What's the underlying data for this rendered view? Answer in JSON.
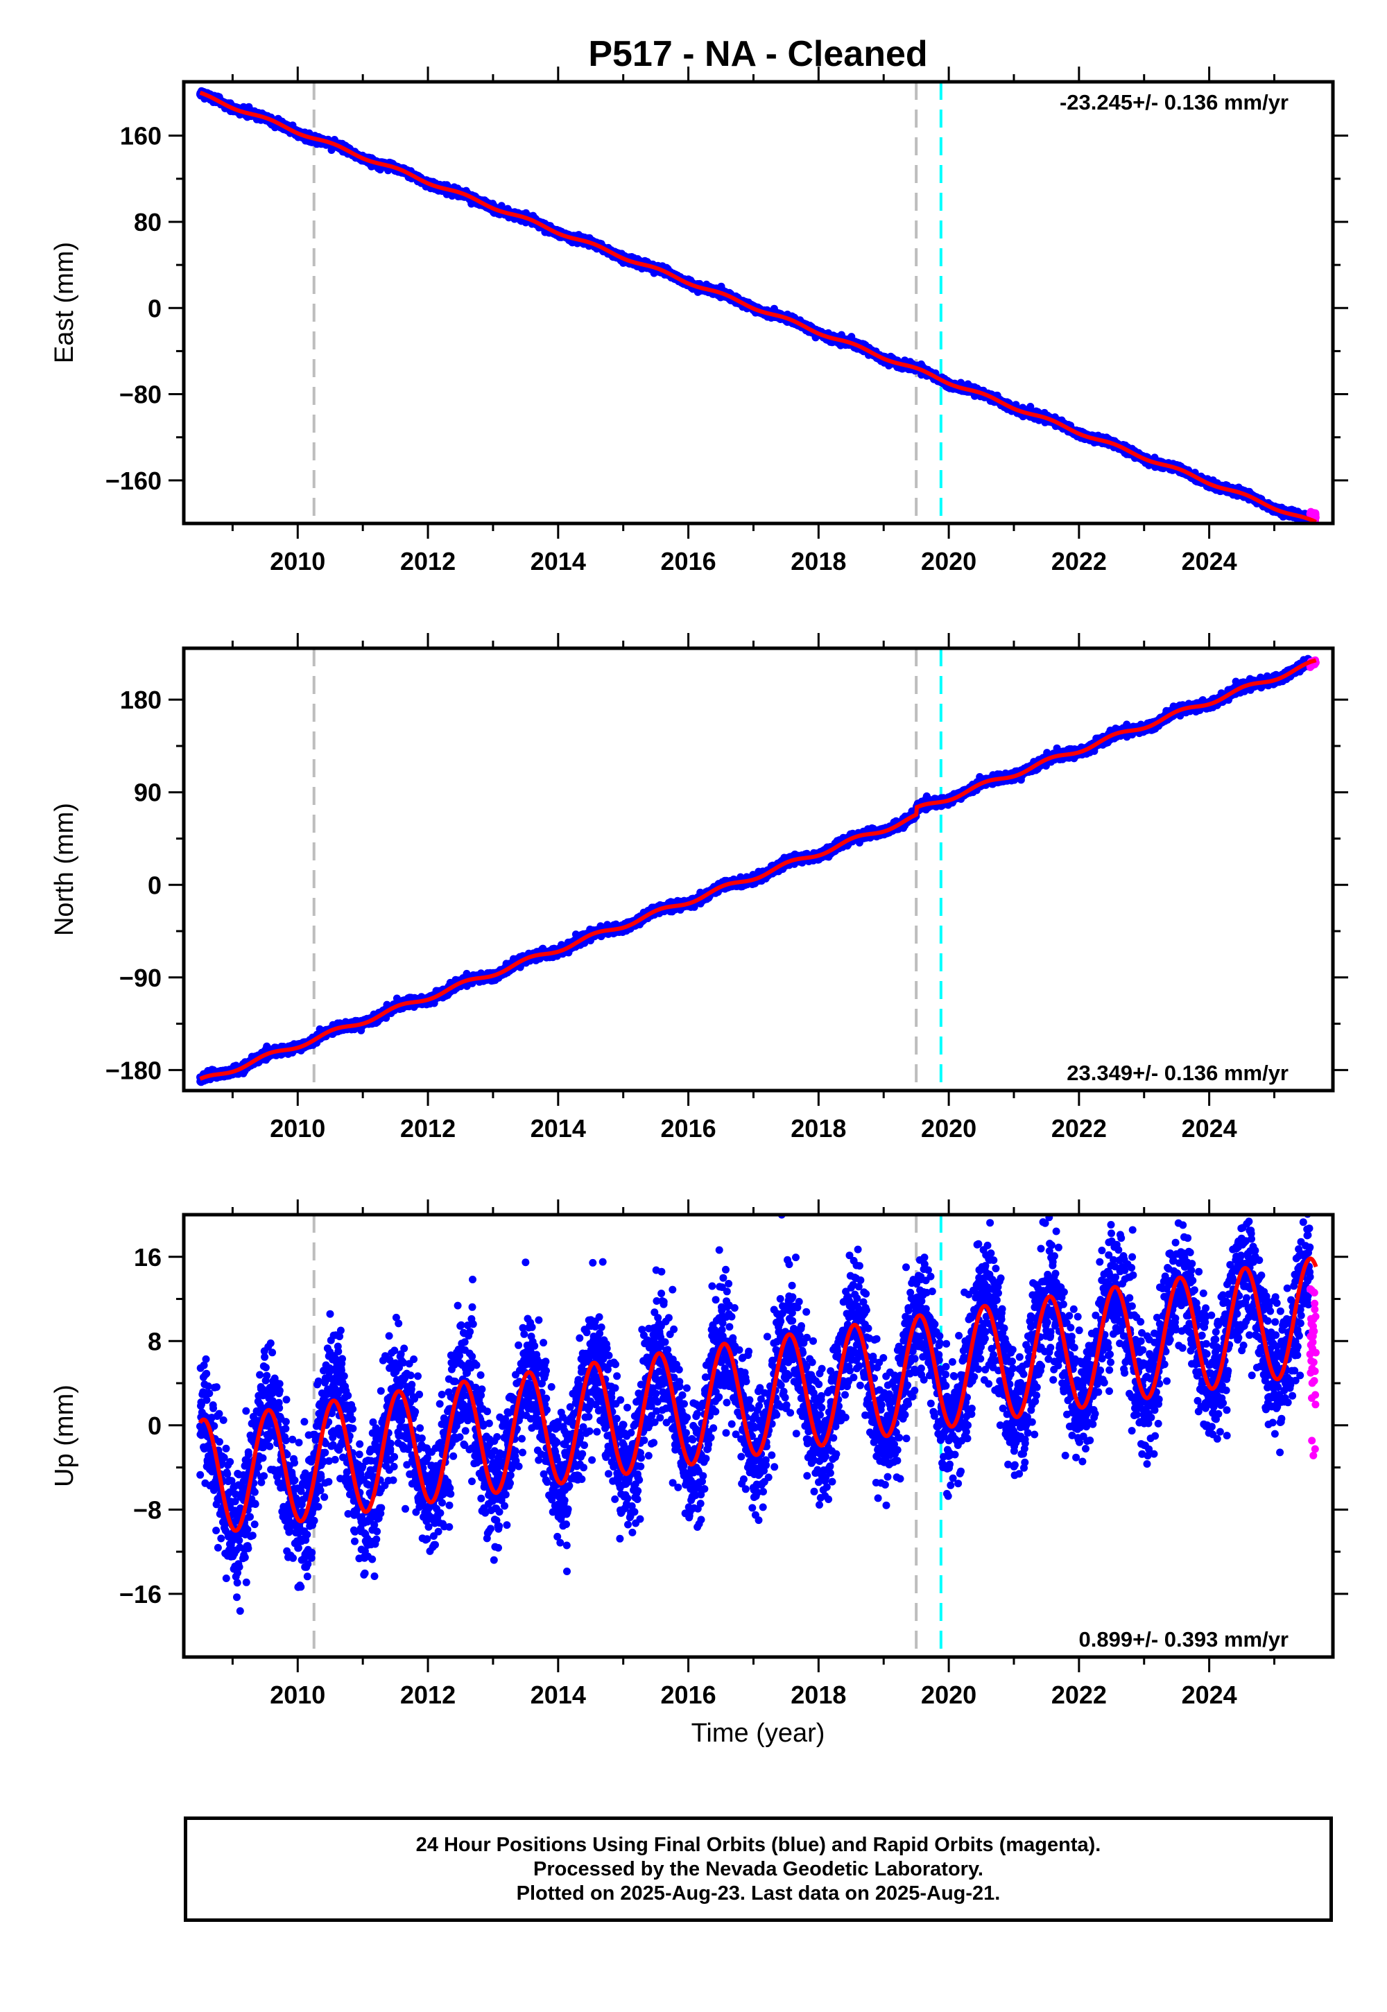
{
  "title": "P517  - NA - Cleaned",
  "xlabel": "Time (year)",
  "caption": {
    "line1": "24 Hour Positions Using Final Orbits (blue) and Rapid Orbits (magenta).",
    "line2": "Processed by the Nevada Geodetic Laboratory.",
    "line3": "Plotted on 2025-Aug-23. Last data on 2025-Aug-21."
  },
  "colors": {
    "final_orbits": "#0000ff",
    "rapid_orbits": "#ff00ff",
    "model_fit": "#ff0000",
    "event_line_gray": "#bdbdbd",
    "event_line_cyan": "#00ffff"
  },
  "chart_data": [
    {
      "type": "scatter",
      "ylabel": "East (mm)",
      "rate_label": "-23.245+/- 0.136 mm/yr",
      "rate_position": "top-right",
      "xlim": [
        2008.25,
        2025.9
      ],
      "ylim": [
        -200,
        210
      ],
      "xticks": [
        2010,
        2012,
        2014,
        2016,
        2018,
        2020,
        2022,
        2024
      ],
      "yticks": [
        160,
        80,
        0,
        -80,
        -160
      ],
      "ytick_labels": [
        "160",
        "80",
        "0",
        "−80",
        "−160"
      ],
      "vlines_gray": [
        2010.25,
        2019.5
      ],
      "vlines_cyan": [
        2019.88
      ],
      "series": [
        {
          "role": "final_orbits",
          "x_start": 2008.5,
          "x_end": 2025.55,
          "y_at_start": 198.5,
          "rate_mm_per_yr": -23.245,
          "seasonal_amplitude_mm": 1.5,
          "scatter_mm": 1.6
        },
        {
          "role": "rapid_orbits",
          "x_start": 2025.55,
          "x_end": 2025.64,
          "y_at_start": -191,
          "rate_mm_per_yr": -23.245,
          "scatter_mm": 1.2
        },
        {
          "role": "model_fit",
          "x_start": 2008.5,
          "x_end": 2025.64,
          "y_at_start": 198.5,
          "rate_mm_per_yr": -23.245,
          "seasonal_amplitude_mm": 1.5
        }
      ]
    },
    {
      "type": "scatter",
      "ylabel": "North (mm)",
      "rate_label": "23.349+/- 0.136 mm/yr",
      "rate_position": "bottom-right",
      "xlim": [
        2008.25,
        2025.9
      ],
      "ylim": [
        -200,
        230
      ],
      "xticks": [
        2010,
        2012,
        2014,
        2016,
        2018,
        2020,
        2022,
        2024
      ],
      "yticks": [
        180,
        90,
        0,
        -90,
        -180
      ],
      "ytick_labels": [
        "180",
        "90",
        "0",
        "−90",
        "−180"
      ],
      "vlines_gray": [
        2010.25,
        2019.5
      ],
      "vlines_cyan": [
        2019.88
      ],
      "series": [
        {
          "role": "final_orbits",
          "x_start": 2008.5,
          "x_end": 2025.55,
          "y_at_start": -191,
          "rate_mm_per_yr": 23.349,
          "seasonal_amplitude_mm": 2.5,
          "offset_at_2019_5_mm": 7,
          "scatter_mm": 2.0
        },
        {
          "role": "rapid_orbits",
          "x_start": 2025.55,
          "x_end": 2025.64,
          "y_at_start": 214,
          "rate_mm_per_yr": 23.349,
          "scatter_mm": 1.2
        },
        {
          "role": "model_fit",
          "x_start": 2008.5,
          "x_end": 2025.64,
          "y_at_start": -191,
          "rate_mm_per_yr": 23.349,
          "seasonal_amplitude_mm": 2.5,
          "offset_at_2019_5_mm": 7
        }
      ]
    },
    {
      "type": "scatter",
      "ylabel": "Up (mm)",
      "rate_label": "0.899+/- 0.393 mm/yr",
      "rate_position": "bottom-right",
      "xlim": [
        2008.25,
        2025.9
      ],
      "ylim": [
        -22,
        20
      ],
      "xticks": [
        2010,
        2012,
        2014,
        2016,
        2018,
        2020,
        2022,
        2024
      ],
      "yticks": [
        16,
        8,
        0,
        -8,
        -16
      ],
      "ytick_labels": [
        "16",
        "8",
        "0",
        "−8",
        "−16"
      ],
      "vlines_gray": [
        2010.25,
        2019.5
      ],
      "vlines_cyan": [
        2019.88
      ],
      "series": [
        {
          "role": "final_orbits",
          "x_start": 2008.5,
          "x_end": 2025.55,
          "y_at_start": -5,
          "rate_mm_per_yr": 0.899,
          "seasonal_amplitude_mm": 5.5,
          "scatter_mm": 3.0
        },
        {
          "role": "rapid_orbits",
          "x_start": 2025.55,
          "x_end": 2025.64,
          "y_at_start": 8,
          "rate_mm_per_yr": 0,
          "scatter_mm": 4.0
        },
        {
          "role": "model_fit",
          "x_start": 2008.5,
          "x_end": 2025.64,
          "y_at_start": -5,
          "rate_mm_per_yr": 0.899,
          "seasonal_amplitude_mm": 5.5
        }
      ]
    }
  ]
}
